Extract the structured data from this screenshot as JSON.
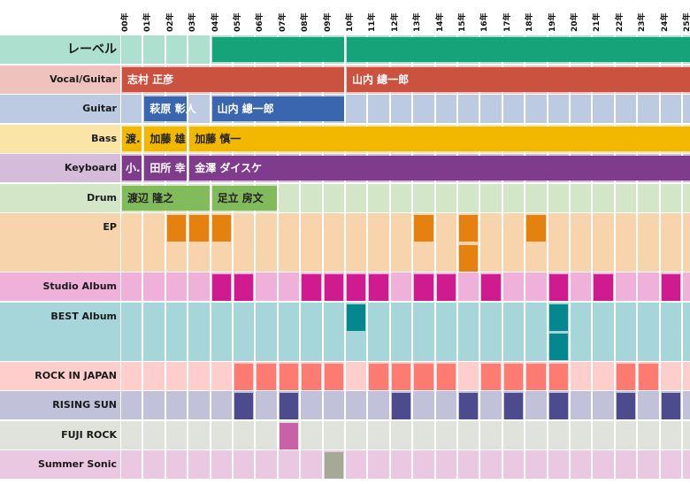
{
  "chart_data": {
    "type": "heatmap",
    "title": "",
    "years": [
      "00年",
      "01年",
      "02年",
      "03年",
      "04年",
      "05年",
      "06年",
      "07年",
      "08年",
      "09年",
      "10年",
      "11年",
      "12年",
      "13年",
      "14年",
      "15年",
      "16年",
      "17年",
      "18年",
      "19年",
      "20年",
      "21年",
      "22年",
      "23年",
      "24年",
      "25年"
    ],
    "rows": [
      {
        "key": "label",
        "name": "レーベル",
        "bg": "#aee0cf",
        "type": "spans",
        "spans": [
          {
            "start": 4,
            "end": 9,
            "text": "",
            "color": "#16a37a"
          },
          {
            "start": 10,
            "end": 25,
            "text": "",
            "color": "#16a37a"
          }
        ]
      },
      {
        "key": "vocal",
        "name": "Vocal/Guitar",
        "bg": "#efc2bd",
        "type": "spans",
        "spans": [
          {
            "start": 0,
            "end": 9,
            "text": "志村 正彦",
            "color": "#cc5240"
          },
          {
            "start": 10,
            "end": 25,
            "text": "山内 總一郎",
            "color": "#cc5240"
          }
        ]
      },
      {
        "key": "guitar",
        "name": "Guitar",
        "bg": "#bccbe1",
        "type": "spans",
        "spans": [
          {
            "start": 1,
            "end": 2,
            "text": "萩原 彰人",
            "color": "#3966ae"
          },
          {
            "start": 4,
            "end": 9,
            "text": "山内 總一郎",
            "color": "#3966ae"
          }
        ]
      },
      {
        "key": "bass",
        "name": "Bass",
        "bg": "#fbe5a6",
        "type": "spans",
        "textColor": "#222222",
        "spans": [
          {
            "start": 0,
            "end": 0,
            "text": "渡.",
            "color": "#f2b800"
          },
          {
            "start": 1,
            "end": 2,
            "text": "加藤 雄",
            "color": "#f2b800"
          },
          {
            "start": 3,
            "end": 25,
            "text": "加藤 慎一",
            "color": "#f2b800"
          }
        ]
      },
      {
        "key": "keyboard",
        "name": "Keyboard",
        "bg": "#d5bcdb",
        "type": "spans",
        "spans": [
          {
            "start": 0,
            "end": 0,
            "text": "小.",
            "color": "#7f3b8c"
          },
          {
            "start": 1,
            "end": 2,
            "text": "田所 幸",
            "color": "#7f3b8c"
          },
          {
            "start": 3,
            "end": 25,
            "text": "金澤 ダイスケ",
            "color": "#7f3b8c"
          }
        ]
      },
      {
        "key": "drum",
        "name": "Drum",
        "bg": "#d3e6c8",
        "type": "spans",
        "textColor": "#222222",
        "spans": [
          {
            "start": 0,
            "end": 3,
            "text": "渡辺 隆之",
            "color": "#82bb5c"
          },
          {
            "start": 4,
            "end": 6,
            "text": "足立 房文",
            "color": "#82bb5c"
          }
        ]
      },
      {
        "key": "ep",
        "name": "EP",
        "bg": "#f7d4ab",
        "type": "counts",
        "color": "#e5820f",
        "tall": true,
        "counts": {
          "2": 1,
          "3": 1,
          "4": 1,
          "13": 1,
          "15": 2,
          "18": 1
        }
      },
      {
        "key": "studio",
        "name": "Studio Album",
        "bg": "#efb0d9",
        "type": "counts",
        "color": "#cf1a90",
        "counts": {
          "4": 1,
          "5": 1,
          "8": 1,
          "9": 1,
          "10": 1,
          "11": 1,
          "13": 1,
          "14": 1,
          "16": 1,
          "19": 1,
          "21": 1,
          "24": 1
        }
      },
      {
        "key": "best",
        "name": "BEST Album",
        "bg": "#a7d6da",
        "type": "counts",
        "color": "#05878f",
        "tall": true,
        "counts": {
          "10": 1,
          "19": 2
        }
      },
      {
        "key": "rij",
        "name": "ROCK IN JAPAN",
        "bg": "#fececc",
        "type": "counts",
        "color": "#fd7b71",
        "counts": {
          "5": 1,
          "6": 1,
          "7": 1,
          "8": 1,
          "9": 1,
          "11": 1,
          "12": 1,
          "13": 1,
          "14": 1,
          "16": 1,
          "17": 1,
          "18": 1,
          "19": 1,
          "22": 1,
          "23": 1
        }
      },
      {
        "key": "rising",
        "name": "RISING SUN",
        "bg": "#c1c1d9",
        "type": "counts",
        "color": "#4b4b8d",
        "counts": {
          "5": 1,
          "7": 1,
          "12": 1,
          "15": 1,
          "17": 1,
          "19": 1,
          "22": 1,
          "24": 1
        }
      },
      {
        "key": "fuji",
        "name": "FUJI ROCK",
        "bg": "#e0e2dc",
        "type": "counts",
        "color": "#c861a7",
        "counts": {
          "7": 1
        }
      },
      {
        "key": "summer",
        "name": "Summer Sonic",
        "bg": "#ebc8e1",
        "type": "counts",
        "color": "#a7a997",
        "counts": {
          "9": 1
        }
      }
    ],
    "xlabel": "",
    "ylabel": "",
    "legend": "none"
  }
}
